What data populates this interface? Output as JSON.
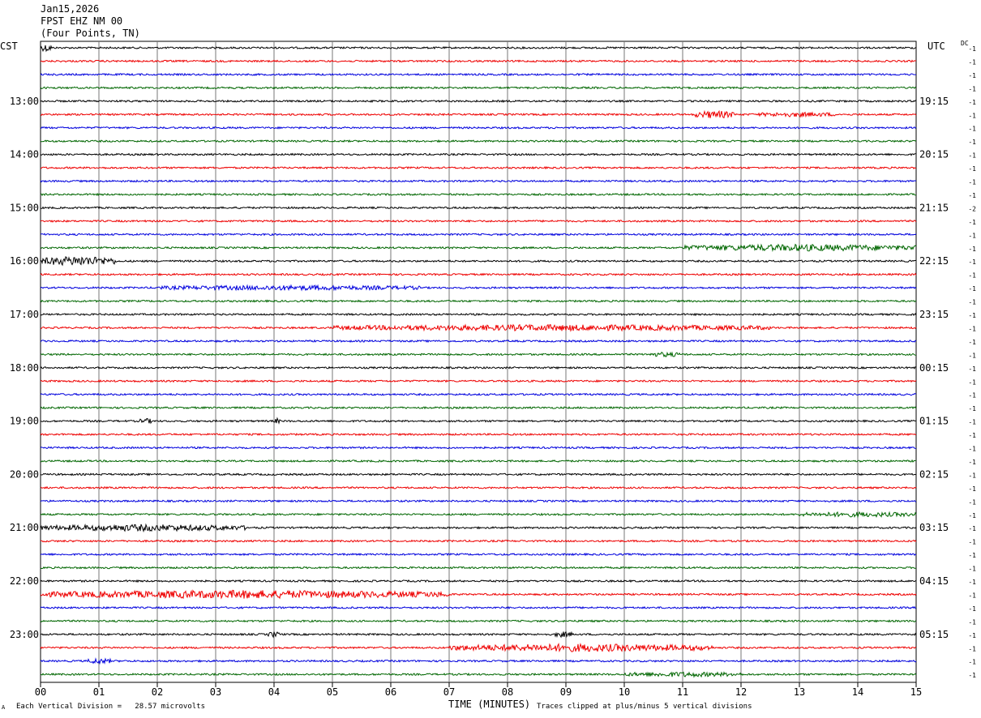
{
  "header": {
    "date": "Jan15,2026",
    "station": "FPST EHZ NM 00",
    "location": "(Four Points, TN)"
  },
  "left_tz": "CST",
  "right_tz": "UTC",
  "dc_label": "DC",
  "footer": {
    "scale_note": "Each Vertical Division =   28.57 microvolts",
    "xlabel": "TIME (MINUTES)",
    "clip_note": "Traces clipped at plus/minus 5 vertical divisions",
    "corner_mark": "A"
  },
  "colors": [
    "#000000",
    "#ee0000",
    "#0000dd",
    "#006600"
  ],
  "chart_data": {
    "type": "line",
    "title": "FPST EHZ NM 00",
    "xlabel": "TIME (MINUTES)",
    "xlim": [
      0,
      15
    ],
    "x_ticks": [
      "00",
      "01",
      "02",
      "03",
      "04",
      "05",
      "06",
      "07",
      "08",
      "09",
      "10",
      "11",
      "12",
      "13",
      "14",
      "15"
    ],
    "left_hour_labels": [
      "13:00",
      "14:00",
      "15:00",
      "16:00",
      "17:00",
      "18:00",
      "19:00",
      "20:00",
      "21:00",
      "22:00",
      "23:00"
    ],
    "right_hour_labels": [
      "19:15",
      "20:15",
      "21:15",
      "22:15",
      "23:15",
      "00:15",
      "01:15",
      "02:15",
      "03:15",
      "04:15",
      "05:15"
    ],
    "trace_count": 48,
    "dc_offsets": [
      -1,
      -1,
      -1,
      -1,
      -1,
      -1,
      -1,
      -1,
      -1,
      -1,
      -1,
      -1,
      -2,
      -1,
      -1,
      -1,
      -1,
      -1,
      -1,
      -1,
      -1,
      -1,
      -1,
      -1,
      -1,
      -1,
      -1,
      -1,
      -1,
      -1,
      -1,
      -1,
      -1,
      -1,
      -1,
      -1,
      -1,
      -1,
      -1,
      -1,
      -1,
      -1,
      -1,
      -1,
      -1,
      -1,
      -1,
      -1
    ],
    "grid": true,
    "events": [
      {
        "trace": 0,
        "start_min": 0.0,
        "end_min": 0.2,
        "strength": 3
      },
      {
        "trace": 5,
        "start_min": 11.2,
        "end_min": 11.9,
        "strength": 3
      },
      {
        "trace": 5,
        "start_min": 12.3,
        "end_min": 13.6,
        "strength": 1.5
      },
      {
        "trace": 15,
        "start_min": 11.0,
        "end_min": 15.0,
        "strength": 2.5
      },
      {
        "trace": 16,
        "start_min": 0.0,
        "end_min": 1.3,
        "strength": 4
      },
      {
        "trace": 18,
        "start_min": 2.0,
        "end_min": 6.5,
        "strength": 1.6
      },
      {
        "trace": 21,
        "start_min": 5.0,
        "end_min": 12.5,
        "strength": 2.2
      },
      {
        "trace": 23,
        "start_min": 10.4,
        "end_min": 11.0,
        "strength": 1.5
      },
      {
        "trace": 28,
        "start_min": 1.7,
        "end_min": 1.9,
        "strength": 2
      },
      {
        "trace": 35,
        "start_min": 13.0,
        "end_min": 15.0,
        "strength": 1.6
      },
      {
        "trace": 28,
        "start_min": 4.0,
        "end_min": 4.1,
        "strength": 2
      },
      {
        "trace": 36,
        "start_min": 0.0,
        "end_min": 3.5,
        "strength": 2.5
      },
      {
        "trace": 41,
        "start_min": 0.0,
        "end_min": 7.0,
        "strength": 3.2
      },
      {
        "trace": 44,
        "start_min": 8.8,
        "end_min": 9.1,
        "strength": 2
      },
      {
        "trace": 44,
        "start_min": 3.9,
        "end_min": 4.1,
        "strength": 2
      },
      {
        "trace": 45,
        "start_min": 7.0,
        "end_min": 11.5,
        "strength": 3
      },
      {
        "trace": 46,
        "start_min": 0.8,
        "end_min": 1.2,
        "strength": 2
      },
      {
        "trace": 47,
        "start_min": 10.0,
        "end_min": 12.0,
        "strength": 1.6
      }
    ]
  }
}
